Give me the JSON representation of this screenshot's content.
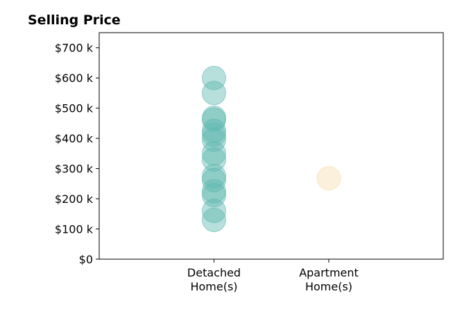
{
  "chart_data": {
    "type": "scatter",
    "title": "Selling Price",
    "xlabel": "",
    "ylabel": "",
    "categories": [
      "Detached\nHome(s)",
      "Apartment\nHome(s)"
    ],
    "ylim": [
      0,
      750000
    ],
    "y_ticks": [
      0,
      100000,
      200000,
      300000,
      400000,
      500000,
      600000,
      700000
    ],
    "y_tick_labels": [
      "$0",
      "$100 k",
      "$200 k",
      "$300 k",
      "$400 k",
      "$500 k",
      "$600 k",
      "$700 k"
    ],
    "grid": false,
    "series": [
      {
        "category": "Detached\nHome(s)",
        "color": "#5fb8b0",
        "values": [
          600000,
          550000,
          468000,
          462000,
          425000,
          412000,
          395000,
          350000,
          330000,
          275000,
          262000,
          225000,
          212000,
          160000,
          130000
        ]
      },
      {
        "category": "Apartment\nHome(s)",
        "color": "#f5deb0",
        "values": [
          268000
        ]
      }
    ]
  }
}
